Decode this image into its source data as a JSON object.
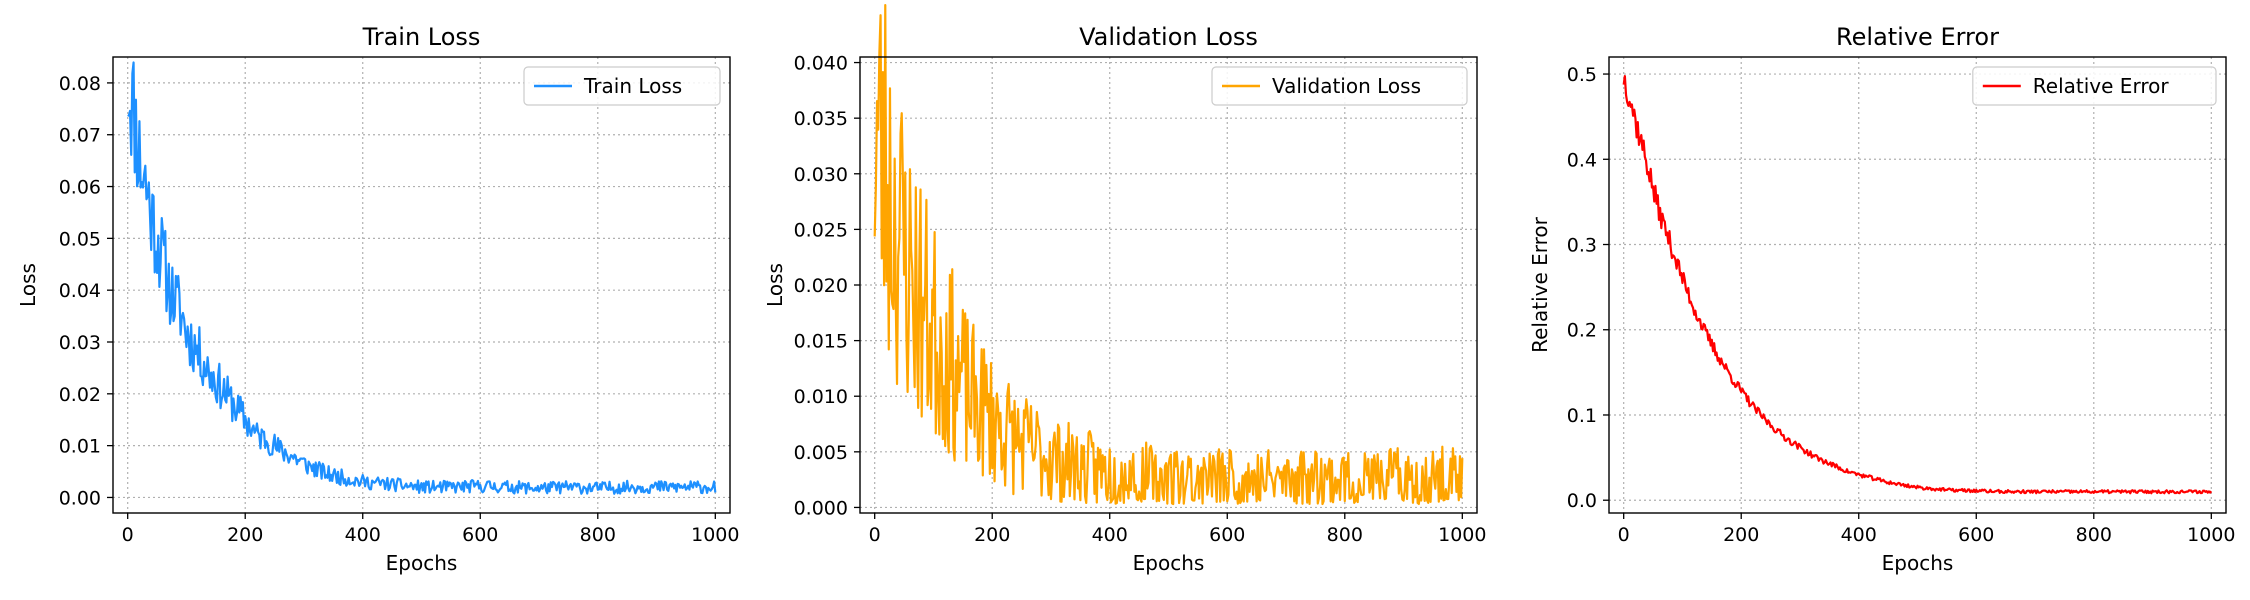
{
  "chart_data": [
    {
      "type": "line",
      "title": "Train Loss",
      "xlabel": "Epochs",
      "ylabel": "Loss",
      "xlim": [
        -25,
        1025
      ],
      "ylim": [
        -0.003,
        0.085
      ],
      "xticks": [
        0,
        200,
        400,
        600,
        800,
        1000
      ],
      "yticks": [
        0.0,
        0.01,
        0.02,
        0.03,
        0.04,
        0.05,
        0.06,
        0.07,
        0.08
      ],
      "ytick_labels": [
        "0.00",
        "0.01",
        "0.02",
        "0.03",
        "0.04",
        "0.05",
        "0.06",
        "0.07",
        "0.08"
      ],
      "grid": true,
      "legend": "top-right",
      "series": [
        {
          "name": "Train Loss",
          "color": "#1e90ff",
          "x": [
            0,
            10,
            20,
            30,
            40,
            50,
            60,
            70,
            80,
            90,
            100,
            120,
            140,
            160,
            180,
            200,
            220,
            240,
            260,
            280,
            300,
            320,
            340,
            360,
            380,
            400,
            450,
            500,
            550,
            600,
            650,
            700,
            750,
            800,
            850,
            900,
            950,
            1000
          ],
          "y": [
            0.081,
            0.075,
            0.066,
            0.061,
            0.055,
            0.05,
            0.046,
            0.041,
            0.038,
            0.036,
            0.032,
            0.028,
            0.024,
            0.021,
            0.018,
            0.015,
            0.012,
            0.011,
            0.009,
            0.008,
            0.0065,
            0.0055,
            0.0045,
            0.004,
            0.0035,
            0.003,
            0.0025,
            0.002,
            0.002,
            0.0022,
            0.002,
            0.0018,
            0.002,
            0.0018,
            0.002,
            0.002,
            0.002,
            0.002
          ]
        }
      ]
    },
    {
      "type": "line",
      "title": "Validation Loss",
      "xlabel": "Epochs",
      "ylabel": "Loss",
      "xlim": [
        -25,
        1025
      ],
      "ylim": [
        -0.0005,
        0.0405
      ],
      "xticks": [
        0,
        200,
        400,
        600,
        800,
        1000
      ],
      "yticks": [
        0.0,
        0.005,
        0.01,
        0.015,
        0.02,
        0.025,
        0.03,
        0.035,
        0.04
      ],
      "ytick_labels": [
        "0.000",
        "0.005",
        "0.010",
        "0.015",
        "0.020",
        "0.025",
        "0.030",
        "0.035",
        "0.040"
      ],
      "grid": true,
      "legend": "top-right",
      "series": [
        {
          "name": "Validation Loss",
          "color": "#ffa500",
          "x": [
            0,
            10,
            20,
            30,
            40,
            50,
            60,
            70,
            80,
            90,
            100,
            120,
            140,
            160,
            180,
            200,
            220,
            240,
            260,
            280,
            300,
            320,
            340,
            360,
            380,
            400,
            450,
            500,
            550,
            600,
            650,
            700,
            750,
            800,
            850,
            900,
            950,
            1000
          ],
          "y": [
            0.035,
            0.032,
            0.03,
            0.027,
            0.025,
            0.023,
            0.021,
            0.02,
            0.018,
            0.017,
            0.016,
            0.014,
            0.012,
            0.01,
            0.009,
            0.008,
            0.007,
            0.006,
            0.0055,
            0.005,
            0.0045,
            0.004,
            0.0038,
            0.0035,
            0.0033,
            0.003,
            0.0028,
            0.0027,
            0.0026,
            0.0026,
            0.0025,
            0.0025,
            0.0025,
            0.0025,
            0.0026,
            0.0025,
            0.0025,
            0.0025
          ]
        }
      ]
    },
    {
      "type": "line",
      "title": "Relative Error",
      "xlabel": "Epochs",
      "ylabel": "Relative Error",
      "xlim": [
        -25,
        1025
      ],
      "ylim": [
        -0.015,
        0.52
      ],
      "xticks": [
        0,
        200,
        400,
        600,
        800,
        1000
      ],
      "yticks": [
        0.0,
        0.1,
        0.2,
        0.3,
        0.4,
        0.5
      ],
      "ytick_labels": [
        "0.0",
        "0.1",
        "0.2",
        "0.3",
        "0.4",
        "0.5"
      ],
      "grid": true,
      "legend": "top-right",
      "series": [
        {
          "name": "Relative Error",
          "color": "#ff0000",
          "x": [
            0,
            10,
            20,
            30,
            40,
            50,
            60,
            70,
            80,
            90,
            100,
            120,
            140,
            160,
            180,
            200,
            220,
            240,
            260,
            280,
            300,
            320,
            340,
            360,
            380,
            400,
            450,
            500,
            550,
            600,
            650,
            700,
            750,
            800,
            850,
            900,
            950,
            1000
          ],
          "y": [
            0.497,
            0.475,
            0.445,
            0.42,
            0.395,
            0.365,
            0.34,
            0.32,
            0.3,
            0.28,
            0.26,
            0.225,
            0.195,
            0.17,
            0.148,
            0.128,
            0.11,
            0.095,
            0.082,
            0.071,
            0.062,
            0.053,
            0.046,
            0.04,
            0.034,
            0.03,
            0.021,
            0.015,
            0.012,
            0.011,
            0.01,
            0.01,
            0.01,
            0.01,
            0.01,
            0.01,
            0.01,
            0.01
          ]
        }
      ]
    }
  ]
}
